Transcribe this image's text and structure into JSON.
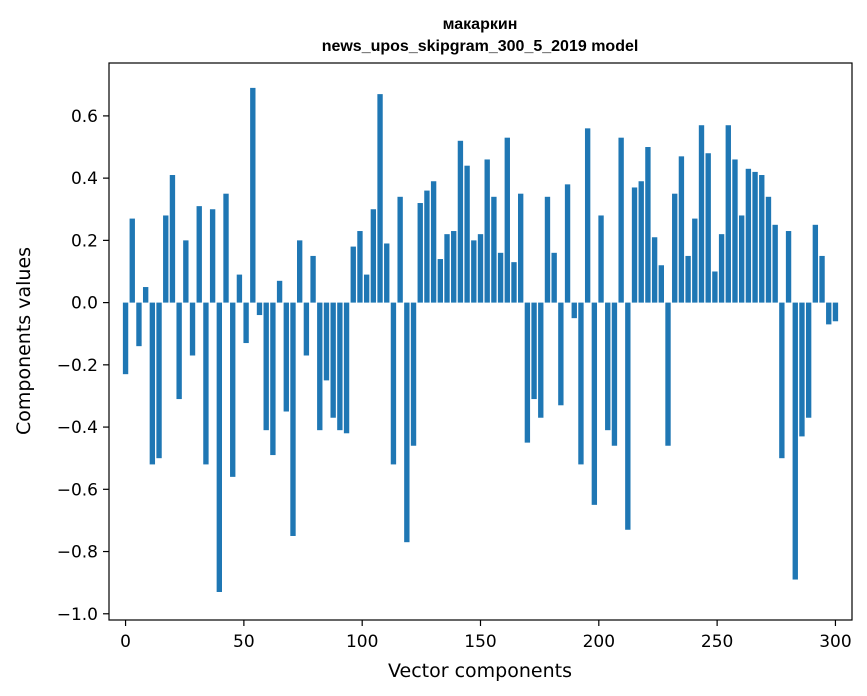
{
  "chart_data": {
    "type": "bar",
    "title_line1": "макаркин",
    "title_line2": "news_upos_skipgram_300_5_2019 model",
    "xlabel": "Vector components",
    "ylabel": "Components values",
    "xlim": [
      -7,
      307
    ],
    "ylim": [
      -1.02,
      0.77
    ],
    "xticks": [
      0,
      50,
      100,
      150,
      200,
      250,
      300
    ],
    "xtick_labels": [
      "0",
      "50",
      "100",
      "150",
      "200",
      "250",
      "300"
    ],
    "yticks": [
      -1.0,
      -0.8,
      -0.6,
      -0.4,
      -0.2,
      0.0,
      0.2,
      0.4,
      0.6
    ],
    "ytick_labels": [
      "−1.0",
      "−0.8",
      "−0.6",
      "−0.4",
      "−0.2",
      "0.0",
      "0.2",
      "0.4",
      "0.6"
    ],
    "bar_color": "#1f77b4",
    "grid": false,
    "values": [
      -0.23,
      0.27,
      -0.14,
      0.05,
      -0.52,
      -0.5,
      0.28,
      0.41,
      -0.31,
      0.2,
      -0.17,
      0.31,
      -0.52,
      0.3,
      -0.93,
      0.35,
      -0.56,
      0.09,
      -0.13,
      0.69,
      -0.04,
      -0.41,
      -0.49,
      0.07,
      -0.35,
      -0.75,
      0.2,
      -0.17,
      0.15,
      -0.41,
      -0.25,
      -0.37,
      -0.41,
      -0.42,
      0.18,
      0.23,
      0.09,
      0.3,
      0.67,
      0.19,
      -0.52,
      0.34,
      -0.77,
      -0.46,
      0.32,
      0.36,
      0.39,
      0.14,
      0.22,
      0.23,
      0.52,
      0.44,
      0.2,
      0.22,
      0.46,
      0.34,
      0.16,
      0.53,
      0.13,
      0.35,
      -0.45,
      -0.31,
      -0.37,
      0.34,
      0.16,
      -0.33,
      0.38,
      -0.05,
      -0.52,
      0.56,
      -0.65,
      0.28,
      -0.41,
      -0.46,
      0.53,
      -0.73,
      0.37,
      0.39,
      0.5,
      0.21,
      0.12,
      -0.46,
      0.35,
      0.47,
      0.15,
      0.27,
      0.57,
      0.48,
      0.1,
      0.22,
      0.57,
      0.46,
      0.28,
      0.43,
      0.42,
      0.41,
      0.34,
      0.25,
      -0.5,
      0.23,
      -0.89,
      -0.43,
      -0.37,
      0.25,
      0.15,
      -0.07,
      -0.06
    ]
  }
}
